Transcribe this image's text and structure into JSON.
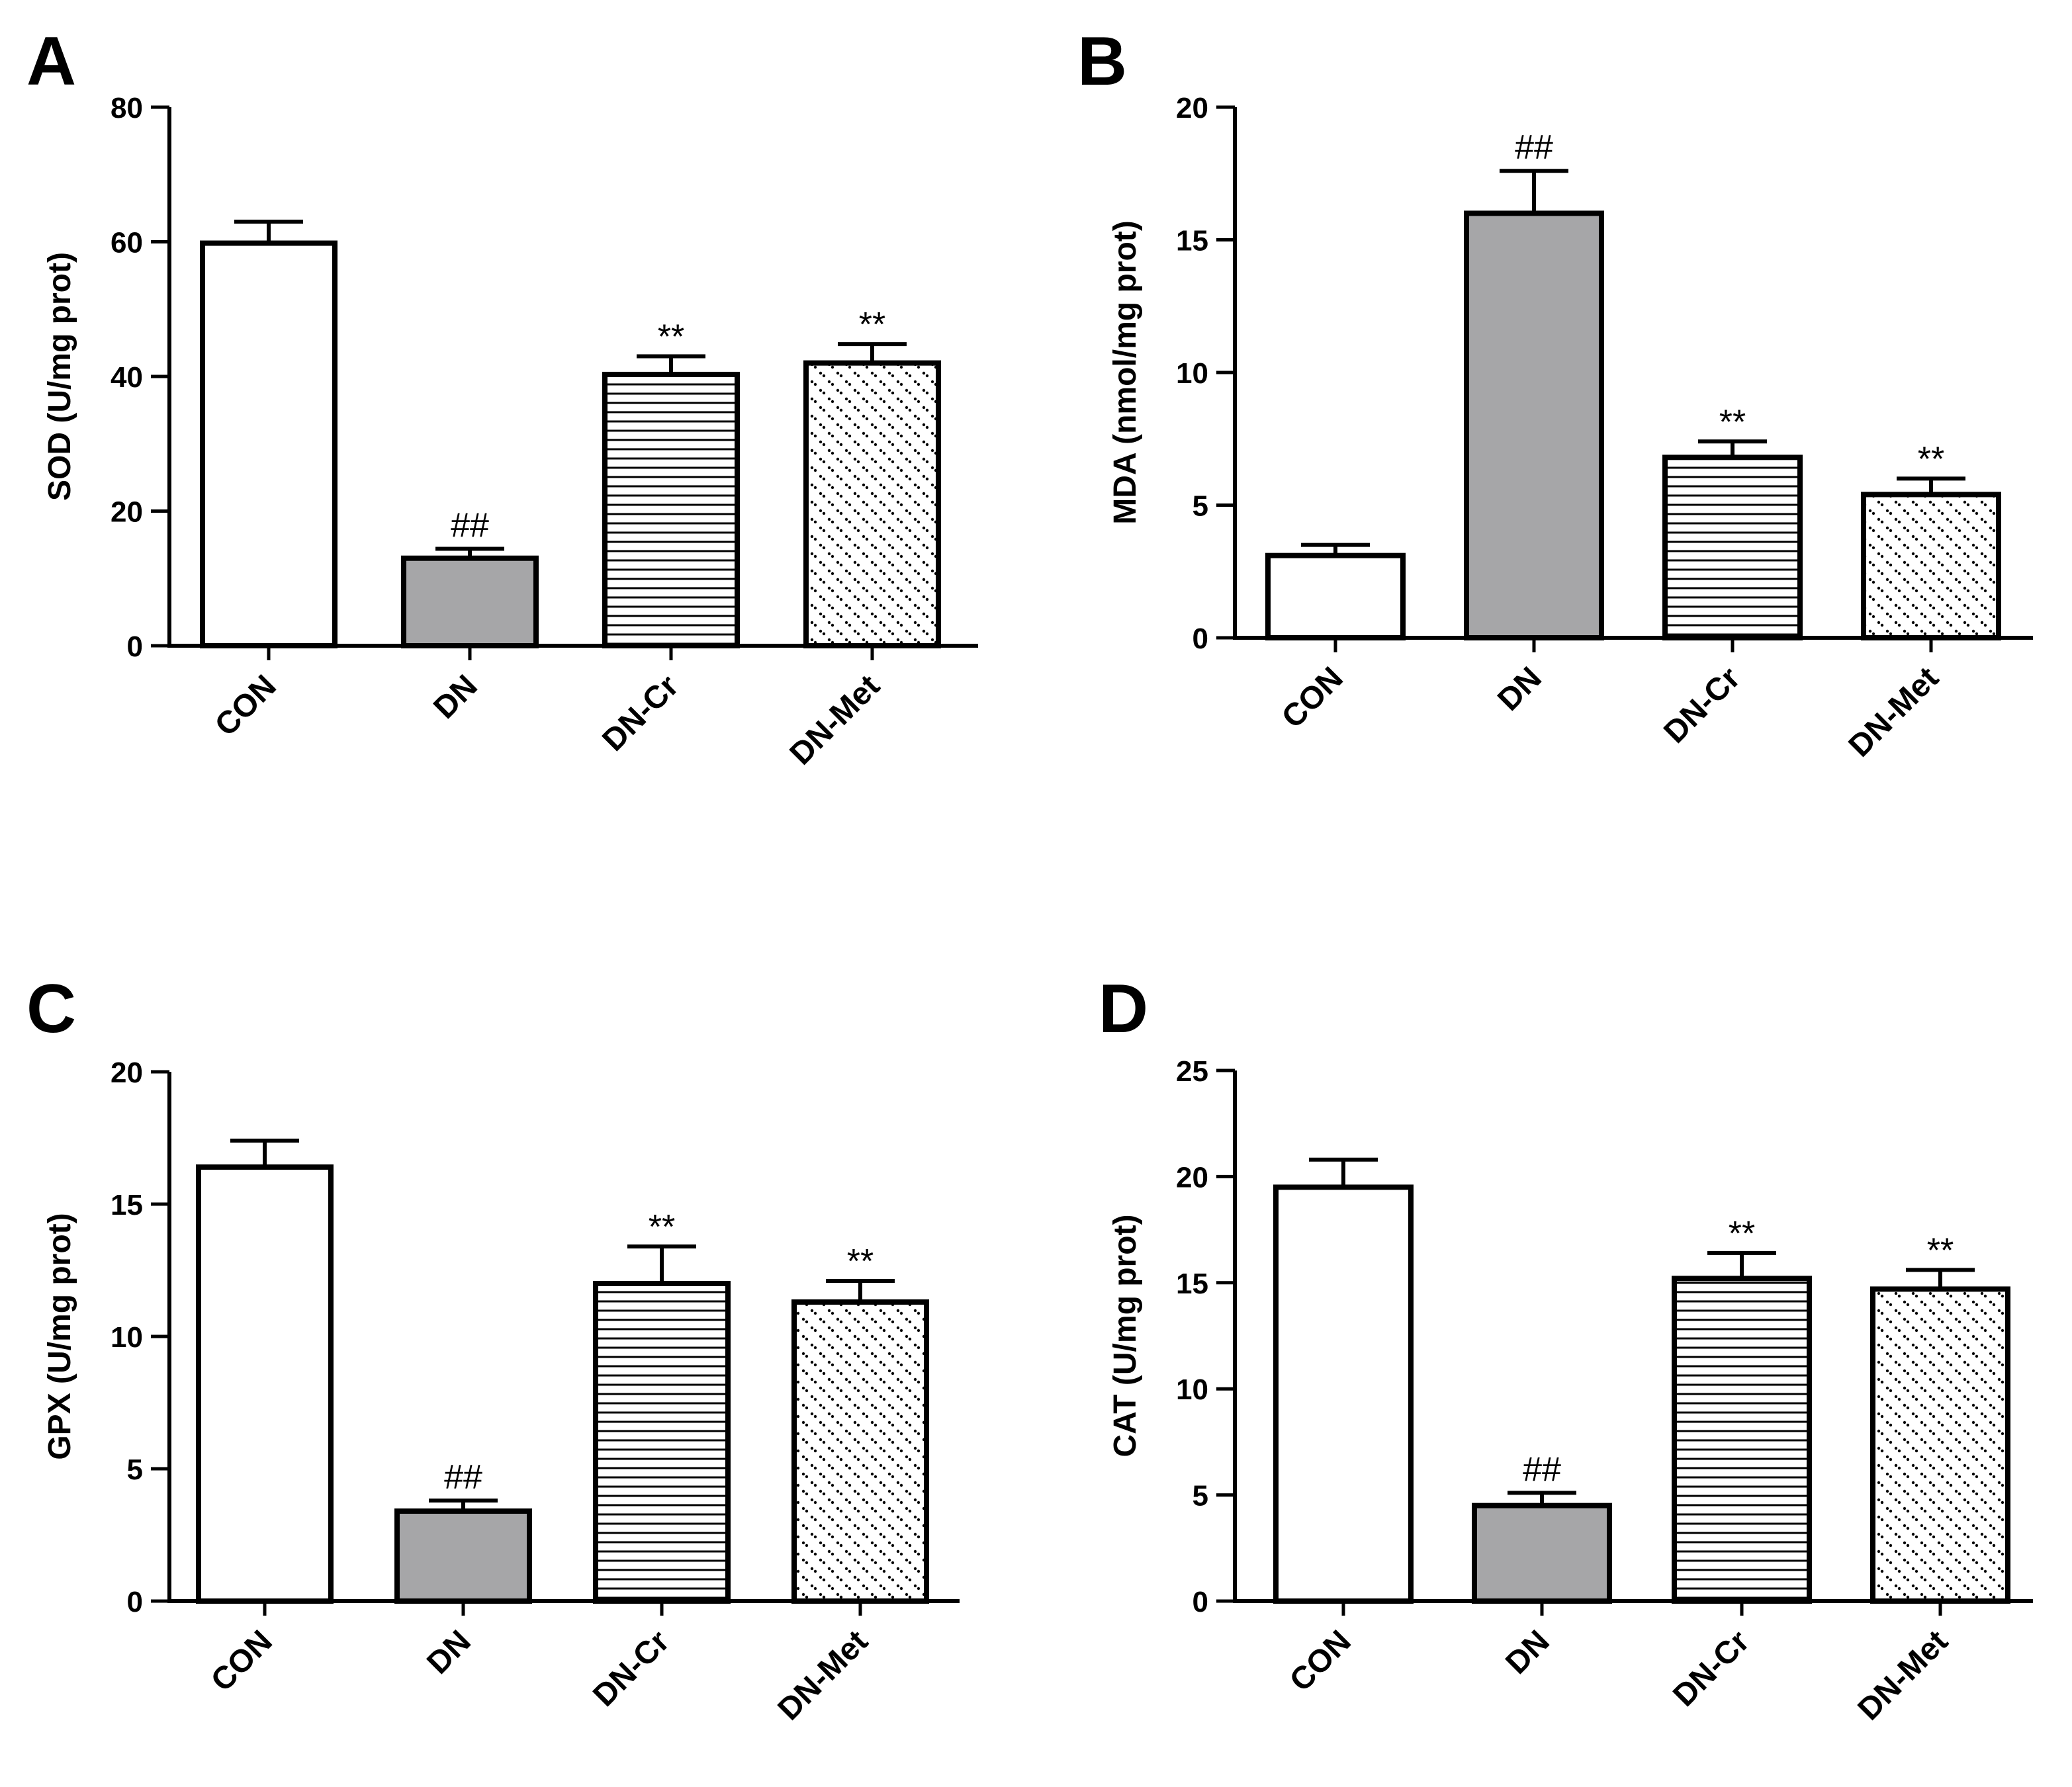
{
  "figure": {
    "colors": {
      "axis": "#000000",
      "bar_edge": "#000000",
      "dn_fill": "#a6a6a8",
      "con_fill": "#ffffff",
      "pattern_fill": "#ffffff"
    }
  },
  "chart_data": [
    {
      "panel": "A",
      "type": "bar",
      "ylabel": "SOD (U/mg prot)",
      "xlabel": "",
      "ylim": [
        0,
        80
      ],
      "yticks": [
        0,
        20,
        40,
        60,
        80
      ],
      "categories": [
        "CON",
        "DN",
        "DN-Cr",
        "DN-Met"
      ],
      "values": [
        59.8,
        13.0,
        40.3,
        42.0
      ],
      "errors": [
        3.2,
        1.4,
        2.7,
        2.8
      ],
      "annotations": [
        "",
        "##",
        "**",
        "**"
      ],
      "fills": [
        "white",
        "gray",
        "hlines",
        "dots"
      ]
    },
    {
      "panel": "B",
      "type": "bar",
      "ylabel": "MDA (nmol/mg prot)",
      "xlabel": "",
      "ylim": [
        0,
        20
      ],
      "yticks": [
        0,
        5,
        10,
        15,
        20
      ],
      "categories": [
        "CON",
        "DN",
        "DN-Cr",
        "DN-Met"
      ],
      "values": [
        3.1,
        16.0,
        6.8,
        5.4
      ],
      "errors": [
        0.4,
        1.6,
        0.6,
        0.6
      ],
      "annotations": [
        "",
        "##",
        "**",
        "**"
      ],
      "fills": [
        "white",
        "gray",
        "hlines",
        "dots"
      ]
    },
    {
      "panel": "C",
      "type": "bar",
      "ylabel": "GPX (U/mg prot)",
      "xlabel": "",
      "ylim": [
        0,
        20
      ],
      "yticks": [
        0,
        5,
        10,
        15,
        20
      ],
      "categories": [
        "CON",
        "DN",
        "DN-Cr",
        "DN-Met"
      ],
      "values": [
        16.4,
        3.4,
        12.0,
        11.3
      ],
      "errors": [
        1.0,
        0.4,
        1.4,
        0.8
      ],
      "annotations": [
        "",
        "##",
        "**",
        "**"
      ],
      "fills": [
        "white",
        "gray",
        "hlines",
        "dots"
      ]
    },
    {
      "panel": "D",
      "type": "bar",
      "ylabel": "CAT  (U/mg prot)",
      "xlabel": "",
      "ylim": [
        0,
        25
      ],
      "yticks": [
        0,
        5,
        10,
        15,
        20,
        25
      ],
      "categories": [
        "CON",
        "DN",
        "DN-Cr",
        "DN-Met"
      ],
      "values": [
        19.5,
        4.5,
        15.2,
        14.7
      ],
      "errors": [
        1.3,
        0.6,
        1.2,
        0.9
      ],
      "annotations": [
        "",
        "##",
        "**",
        "**"
      ],
      "fills": [
        "white",
        "gray",
        "hlines",
        "dots"
      ]
    }
  ]
}
